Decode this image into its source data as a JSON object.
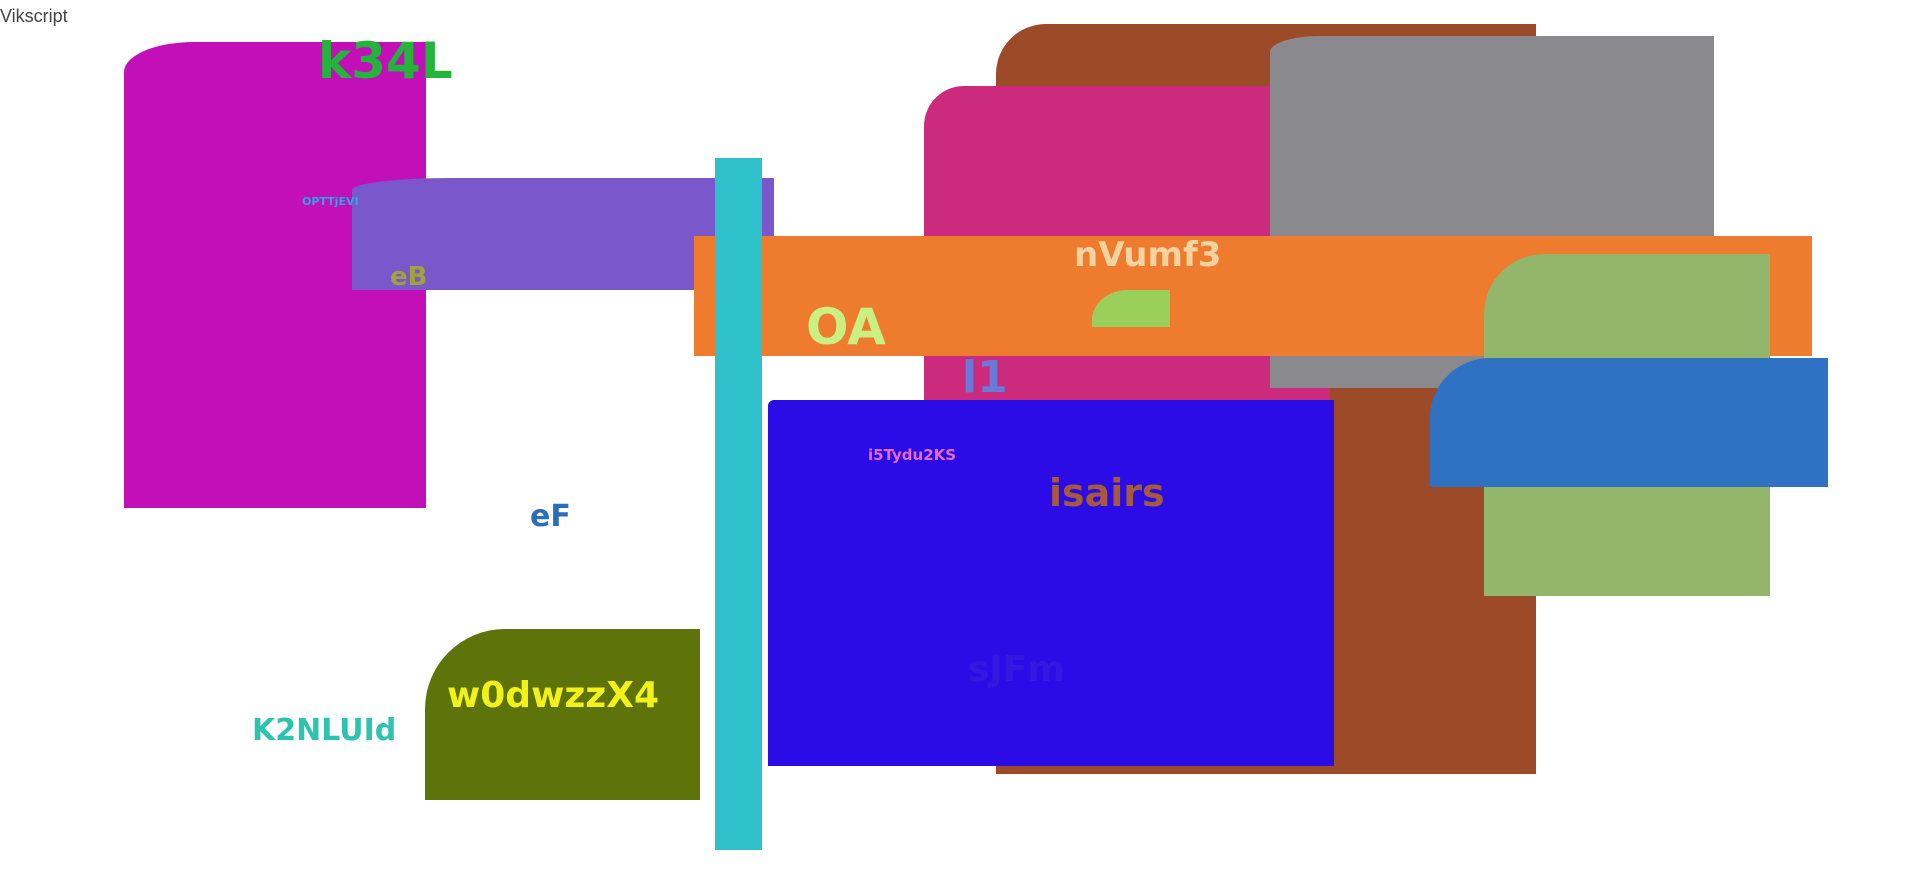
{
  "corner_text": "Vikscript",
  "labels": {
    "k34L": "k34L",
    "OPTTjEVI": "OPTTjEVI",
    "eB": "eB",
    "nVumf3": "nVumf3",
    "OA": "OA",
    "l1": "l1",
    "i5Tydu2KS": "i5Tydu2KS",
    "isairs": "isairs",
    "eF": "eF",
    "sJFm": "sJFm",
    "w0dwzzX4": "w0dwzzX4",
    "K2NLUId": "K2NLUId"
  },
  "colors": {
    "magenta": "#c30fb8",
    "purple": "#7a57ca",
    "cyan": "#2fc1cb",
    "orange": "#ef7b2f",
    "brown": "#9c4a28",
    "pink": "#cc2a7d",
    "gray": "#8a8a8e",
    "sage": "#93b66a",
    "blue": "#2f72c3",
    "indigo": "#2b0be6",
    "olive": "#5e7309",
    "lime_chip": "#9ad05a"
  }
}
